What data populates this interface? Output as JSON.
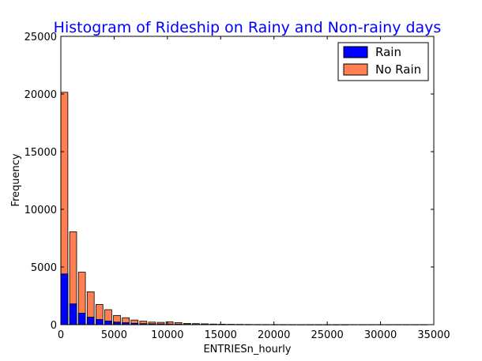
{
  "chart_data": {
    "type": "bar",
    "title": "Histogram of Rideship on Rainy and Non-rainy days",
    "xlabel": "ENTRIESn_hourly",
    "ylabel": "Frequency",
    "xlim": [
      0,
      35000
    ],
    "ylim": [
      0,
      25000
    ],
    "xticks": [
      0,
      5000,
      10000,
      15000,
      20000,
      25000,
      30000,
      35000
    ],
    "yticks": [
      0,
      5000,
      10000,
      15000,
      20000,
      25000
    ],
    "xtick_labels": [
      "0",
      "5000",
      "10000",
      "15000",
      "20000",
      "25000",
      "30000",
      "35000"
    ],
    "ytick_labels": [
      "0",
      "5000",
      "10000",
      "15000",
      "20000",
      "25000"
    ],
    "bin_width": 823,
    "x": [
      0,
      823,
      1646,
      2469,
      3292,
      4115,
      4938,
      5761,
      6584,
      7407,
      8230,
      9053,
      9876,
      10699,
      11522,
      12345,
      13168,
      13991,
      14814,
      15637,
      16460,
      17283,
      18106,
      18929,
      19752,
      20575,
      21398,
      22221,
      23044,
      23867,
      24690,
      25513,
      26336,
      27159,
      27982,
      28805,
      29628,
      30451,
      31274,
      32097,
      32920,
      33743
    ],
    "series": [
      {
        "name": "Rain",
        "color": "#0000ff",
        "values": [
          4400,
          1800,
          1000,
          650,
          450,
          320,
          220,
          170,
          120,
          90,
          70,
          60,
          50,
          40,
          30,
          25,
          20,
          15,
          12,
          10,
          8,
          6,
          5,
          4,
          3,
          3,
          2,
          2,
          1,
          1,
          1,
          1,
          1,
          0,
          0,
          0,
          0,
          0,
          0,
          0,
          0,
          0
        ]
      },
      {
        "name": "No Rain",
        "color": "#ff7f50",
        "values": [
          20150,
          8050,
          4550,
          2850,
          1750,
          1300,
          800,
          600,
          400,
          300,
          220,
          200,
          250,
          180,
          110,
          90,
          70,
          50,
          40,
          30,
          25,
          20,
          15,
          12,
          10,
          8,
          6,
          5,
          4,
          3,
          3,
          2,
          2,
          2,
          1,
          1,
          1,
          1,
          1,
          1,
          1,
          1
        ]
      }
    ],
    "legend_position": "top-right"
  }
}
